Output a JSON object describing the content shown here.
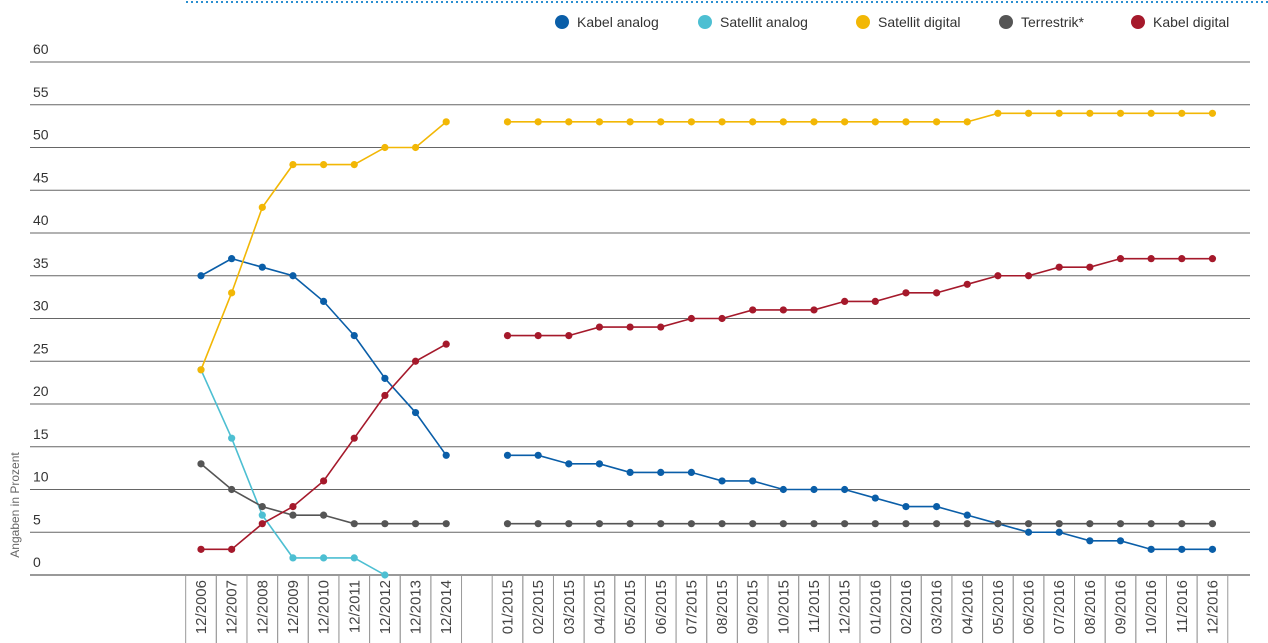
{
  "chart_data": {
    "type": "line",
    "y_label": "Angaben in Prozent",
    "categories": [
      "12/2006",
      "12/2007",
      "12/2008",
      "12/2009",
      "12/2010",
      "12/2011",
      "12/2012",
      "12/2013",
      "12/2014",
      null,
      "01/2015",
      "02/2015",
      "03/2015",
      "04/2015",
      "05/2015",
      "06/2015",
      "07/2015",
      "08/2015",
      "09/2015",
      "10/2015",
      "11/2015",
      "12/2015",
      "01/2016",
      "02/2016",
      "03/2016",
      "04/2016",
      "05/2016",
      "06/2016",
      "07/2016",
      "08/2016",
      "09/2016",
      "10/2016",
      "11/2016",
      "12/2016"
    ],
    "series": [
      {
        "name": "Kabel analog",
        "color": "#0a5ea8",
        "values": [
          35,
          37,
          36,
          35,
          32,
          28,
          23,
          19,
          14,
          null,
          14,
          14,
          13,
          13,
          12,
          12,
          12,
          11,
          11,
          10,
          10,
          10,
          9,
          8,
          8,
          7,
          6,
          5,
          5,
          4,
          4,
          3,
          3,
          3
        ]
      },
      {
        "name": "Satellit analog",
        "color": "#4dbfd2",
        "values": [
          24,
          16,
          7,
          2,
          2,
          2,
          0,
          null,
          null,
          null,
          null,
          null,
          null,
          null,
          null,
          null,
          null,
          null,
          null,
          null,
          null,
          null,
          null,
          null,
          null,
          null,
          null,
          null,
          null,
          null,
          null,
          null,
          null,
          null
        ]
      },
      {
        "name": "Satellit digital",
        "color": "#f2b705",
        "values": [
          24,
          33,
          43,
          48,
          48,
          48,
          50,
          50,
          53,
          null,
          53,
          53,
          53,
          53,
          53,
          53,
          53,
          53,
          53,
          53,
          53,
          53,
          53,
          53,
          53,
          53,
          54,
          54,
          54,
          54,
          54,
          54,
          54,
          54
        ]
      },
      {
        "name": "Terrestrik*",
        "color": "#555555",
        "values": [
          13,
          10,
          8,
          7,
          7,
          6,
          6,
          6,
          6,
          null,
          6,
          6,
          6,
          6,
          6,
          6,
          6,
          6,
          6,
          6,
          6,
          6,
          6,
          6,
          6,
          6,
          6,
          6,
          6,
          6,
          6,
          6,
          6,
          6
        ]
      },
      {
        "name": "Kabel digital",
        "color": "#a5192b",
        "values": [
          3,
          3,
          6,
          8,
          11,
          16,
          21,
          25,
          27,
          null,
          28,
          28,
          28,
          29,
          29,
          29,
          30,
          30,
          31,
          31,
          31,
          32,
          32,
          33,
          33,
          34,
          35,
          35,
          36,
          36,
          37,
          37,
          37,
          37
        ]
      }
    ],
    "ylim": [
      0,
      60
    ],
    "yticks": [
      0,
      5,
      10,
      15,
      20,
      25,
      30,
      35,
      40,
      45,
      50,
      55,
      60
    ],
    "grid": true
  }
}
